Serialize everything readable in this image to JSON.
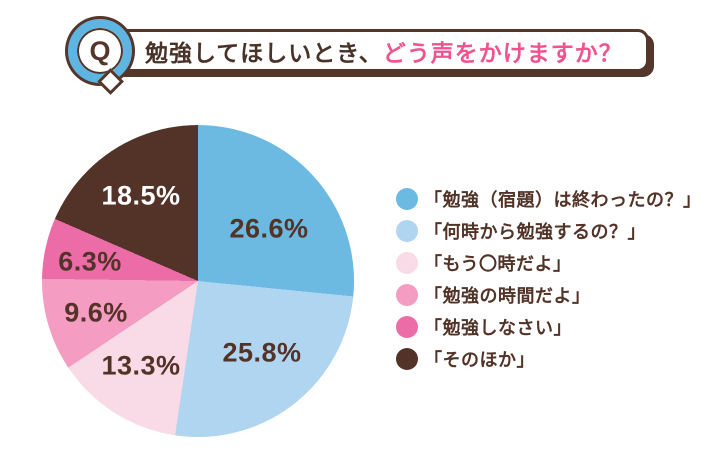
{
  "header": {
    "q_label": "Q",
    "title_plain": "勉強してほしいとき、",
    "title_accent": "どう声をかけますか？"
  },
  "colors": {
    "banner_border_brown": "#54362A",
    "title_text_brown": "#493227",
    "title_accent_pink": "#F0538F",
    "q_badge_blue": "#5FB5E1",
    "legend_text_brown": "#533327",
    "background": "#FFFFFF"
  },
  "chart_data": {
    "type": "pie",
    "title": "勉強してほしいとき、どう声をかけますか？",
    "categories": [
      "「勉強（宿題）は終わったの？」",
      "「何時から勉強するの？」",
      "「もう〇時だよ」",
      "「勉強の時間だよ」",
      "「勉強しなさい」",
      "「そのほか」"
    ],
    "values": [
      26.6,
      25.8,
      13.3,
      9.6,
      6.3,
      18.5
    ],
    "display_labels": [
      "26.6%",
      "25.8%",
      "13.3%",
      "9.6%",
      "6.3%",
      "18.5%"
    ],
    "colors": [
      "#6CB9E2",
      "#AFD5F1",
      "#F8DBE6",
      "#F49CC1",
      "#EB6CA6",
      "#533327"
    ],
    "label_text_colors": [
      "#533327",
      "#533327",
      "#533327",
      "#533327",
      "#533327",
      "#FFFFFF"
    ],
    "start_angle_deg": 0,
    "direction": "clockwise",
    "legend_position": "right",
    "grid": false
  }
}
